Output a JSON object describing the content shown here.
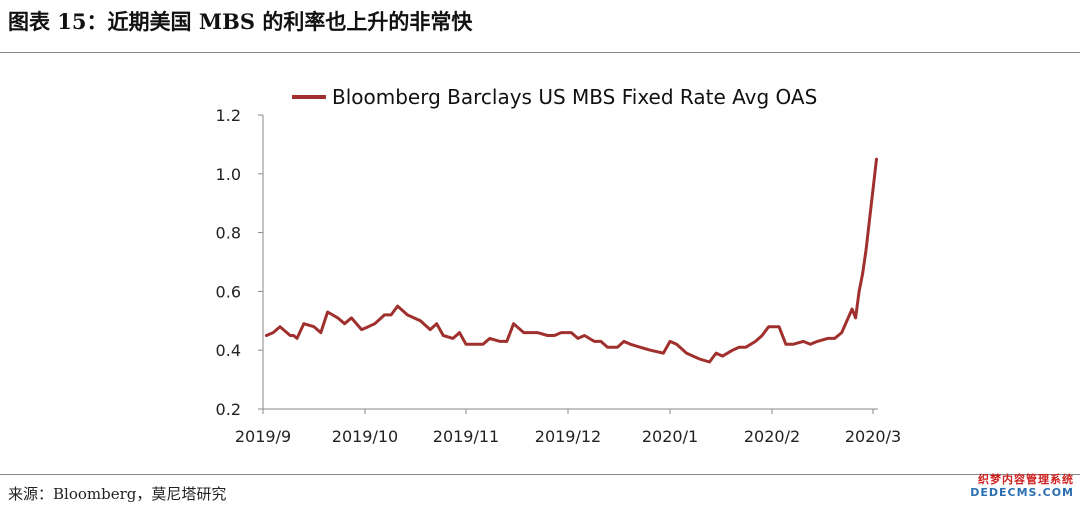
{
  "header": {
    "title": "图表 15：近期美国 MBS 的利率也上升的非常快"
  },
  "footer": {
    "source": "来源：Bloomberg，莫尼塔研究"
  },
  "watermark": {
    "line1": "织梦内容管理系统",
    "line2": "DEDECMS.COM"
  },
  "chart_data": {
    "type": "line",
    "ylim": [
      0.2,
      1.2
    ],
    "yticks": [
      "0.2",
      "0.4",
      "0.6",
      "0.8",
      "1.0",
      "1.2"
    ],
    "xticks": [
      "2019/9",
      "2019/10",
      "2019/11",
      "2019/12",
      "2020/1",
      "2020/2",
      "2020/3"
    ],
    "grid": false,
    "legend_position": "top",
    "line_color": "#a0302d",
    "series": [
      {
        "name": "Bloomberg Barclays US MBS Fixed Rate Avg OAS",
        "x": [
          "2019-09-02",
          "2019-09-04",
          "2019-09-06",
          "2019-09-09",
          "2019-09-10",
          "2019-09-11",
          "2019-09-13",
          "2019-09-16",
          "2019-09-18",
          "2019-09-20",
          "2019-09-23",
          "2019-09-25",
          "2019-09-27",
          "2019-09-30",
          "2019-10-02",
          "2019-10-04",
          "2019-10-07",
          "2019-10-09",
          "2019-10-11",
          "2019-10-14",
          "2019-10-16",
          "2019-10-18",
          "2019-10-21",
          "2019-10-23",
          "2019-10-25",
          "2019-10-28",
          "2019-10-30",
          "2019-11-01",
          "2019-11-04",
          "2019-11-06",
          "2019-11-08",
          "2019-11-11",
          "2019-11-13",
          "2019-11-15",
          "2019-11-18",
          "2019-11-20",
          "2019-11-22",
          "2019-11-25",
          "2019-11-27",
          "2019-11-29",
          "2019-12-02",
          "2019-12-04",
          "2019-12-06",
          "2019-12-09",
          "2019-12-11",
          "2019-12-13",
          "2019-12-16",
          "2019-12-18",
          "2019-12-20",
          "2019-12-23",
          "2019-12-26",
          "2019-12-30",
          "2020-01-01",
          "2020-01-03",
          "2020-01-06",
          "2020-01-08",
          "2020-01-10",
          "2020-01-13",
          "2020-01-15",
          "2020-01-17",
          "2020-01-20",
          "2020-01-22",
          "2020-01-24",
          "2020-01-27",
          "2020-01-29",
          "2020-01-31",
          "2020-02-03",
          "2020-02-05",
          "2020-02-07",
          "2020-02-10",
          "2020-02-12",
          "2020-02-14",
          "2020-02-17",
          "2020-02-19",
          "2020-02-21",
          "2020-02-24",
          "2020-02-25",
          "2020-02-26",
          "2020-02-27",
          "2020-02-28",
          "2020-03-02"
        ],
        "y": [
          0.45,
          0.46,
          0.48,
          0.45,
          0.45,
          0.44,
          0.49,
          0.48,
          0.46,
          0.53,
          0.51,
          0.49,
          0.51,
          0.47,
          0.48,
          0.49,
          0.52,
          0.52,
          0.55,
          0.52,
          0.51,
          0.5,
          0.47,
          0.49,
          0.45,
          0.44,
          0.46,
          0.42,
          0.42,
          0.42,
          0.44,
          0.43,
          0.43,
          0.49,
          0.46,
          0.46,
          0.46,
          0.45,
          0.45,
          0.46,
          0.46,
          0.44,
          0.45,
          0.43,
          0.43,
          0.41,
          0.41,
          0.43,
          0.42,
          0.41,
          0.4,
          0.39,
          0.43,
          0.42,
          0.39,
          0.38,
          0.37,
          0.36,
          0.39,
          0.38,
          0.4,
          0.41,
          0.41,
          0.43,
          0.45,
          0.48,
          0.48,
          0.42,
          0.42,
          0.43,
          0.42,
          0.43,
          0.44,
          0.44,
          0.46,
          0.54,
          0.51,
          0.6,
          0.66,
          0.74,
          1.05
        ]
      }
    ]
  }
}
